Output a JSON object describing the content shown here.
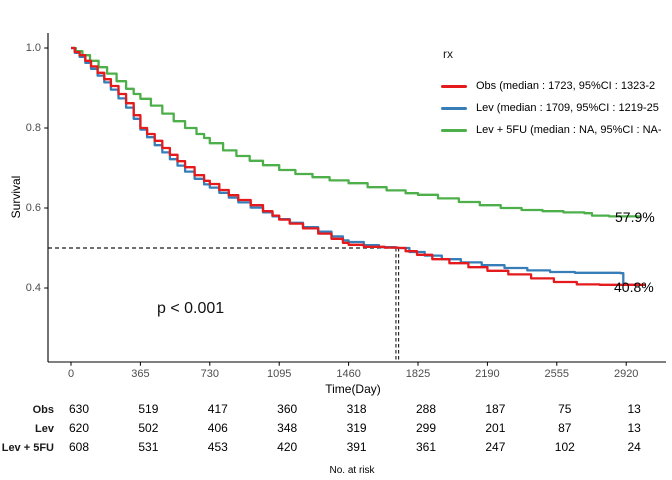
{
  "chart_data": {
    "type": "line",
    "subtype": "kaplan-meier-step",
    "title": "",
    "xlabel": "Time(Day)",
    "ylabel": "Survival",
    "x_ticks": [
      0,
      365,
      730,
      1095,
      1460,
      1825,
      2190,
      2555,
      2920
    ],
    "y_ticks": [
      1.0,
      0.8,
      0.6,
      0.4
    ],
    "y_tick_labels": [
      "1.0",
      "0.8",
      "0.6",
      "0.4"
    ],
    "xlim": [
      0,
      3050
    ],
    "ylim": [
      0.215,
      1.04
    ],
    "grid": false,
    "legend_position": "top-right-inside",
    "reference_lines": {
      "survival_level": 0.5,
      "median_days": [
        1709,
        1723
      ]
    },
    "series": [
      {
        "name": "Obs",
        "color": "#e41a1c",
        "median": 1723,
        "points": [
          [
            0,
            1
          ],
          [
            20,
            0.99
          ],
          [
            45,
            0.982
          ],
          [
            75,
            0.968
          ],
          [
            105,
            0.954
          ],
          [
            140,
            0.938
          ],
          [
            175,
            0.922
          ],
          [
            210,
            0.905
          ],
          [
            250,
            0.885
          ],
          [
            290,
            0.862
          ],
          [
            330,
            0.832
          ],
          [
            365,
            0.8
          ],
          [
            400,
            0.785
          ],
          [
            440,
            0.768
          ],
          [
            480,
            0.75
          ],
          [
            520,
            0.733
          ],
          [
            560,
            0.717
          ],
          [
            600,
            0.702
          ],
          [
            650,
            0.682
          ],
          [
            700,
            0.668
          ],
          [
            730,
            0.66
          ],
          [
            780,
            0.645
          ],
          [
            830,
            0.632
          ],
          [
            880,
            0.62
          ],
          [
            945,
            0.607
          ],
          [
            1010,
            0.592
          ],
          [
            1060,
            0.581
          ],
          [
            1095,
            0.571
          ],
          [
            1150,
            0.561
          ],
          [
            1220,
            0.549
          ],
          [
            1300,
            0.536
          ],
          [
            1370,
            0.523
          ],
          [
            1430,
            0.513
          ],
          [
            1460,
            0.508
          ],
          [
            1540,
            0.503
          ],
          [
            1650,
            0.501
          ],
          [
            1723,
            0.5
          ],
          [
            1760,
            0.492
          ],
          [
            1820,
            0.483
          ],
          [
            1900,
            0.472
          ],
          [
            1990,
            0.462
          ],
          [
            2090,
            0.452
          ],
          [
            2190,
            0.443
          ],
          [
            2300,
            0.434
          ],
          [
            2420,
            0.424
          ],
          [
            2540,
            0.415
          ],
          [
            2660,
            0.409
          ],
          [
            2780,
            0.408
          ],
          [
            3020,
            0.408
          ]
        ]
      },
      {
        "name": "Lev",
        "color": "#377eb8",
        "median": 1709,
        "points": [
          [
            0,
            1
          ],
          [
            20,
            0.988
          ],
          [
            45,
            0.978
          ],
          [
            75,
            0.963
          ],
          [
            105,
            0.948
          ],
          [
            140,
            0.931
          ],
          [
            175,
            0.914
          ],
          [
            210,
            0.896
          ],
          [
            250,
            0.874
          ],
          [
            290,
            0.851
          ],
          [
            330,
            0.823
          ],
          [
            365,
            0.796
          ],
          [
            400,
            0.777
          ],
          [
            440,
            0.757
          ],
          [
            480,
            0.739
          ],
          [
            520,
            0.722
          ],
          [
            560,
            0.706
          ],
          [
            600,
            0.691
          ],
          [
            650,
            0.673
          ],
          [
            700,
            0.659
          ],
          [
            730,
            0.651
          ],
          [
            780,
            0.638
          ],
          [
            830,
            0.626
          ],
          [
            880,
            0.614
          ],
          [
            945,
            0.601
          ],
          [
            1010,
            0.589
          ],
          [
            1060,
            0.579
          ],
          [
            1095,
            0.572
          ],
          [
            1150,
            0.563
          ],
          [
            1220,
            0.552
          ],
          [
            1300,
            0.541
          ],
          [
            1370,
            0.529
          ],
          [
            1430,
            0.519
          ],
          [
            1460,
            0.515
          ],
          [
            1540,
            0.507
          ],
          [
            1620,
            0.502
          ],
          [
            1709,
            0.5
          ],
          [
            1780,
            0.49
          ],
          [
            1860,
            0.481
          ],
          [
            1950,
            0.472
          ],
          [
            2050,
            0.464
          ],
          [
            2160,
            0.457
          ],
          [
            2280,
            0.45
          ],
          [
            2400,
            0.444
          ],
          [
            2520,
            0.44
          ],
          [
            2650,
            0.438
          ],
          [
            2890,
            0.437
          ],
          [
            2905,
            0.408
          ],
          [
            2990,
            0.408
          ]
        ]
      },
      {
        "name": "Lev + 5FU",
        "color": "#4daf4a",
        "median": null,
        "points": [
          [
            0,
            1
          ],
          [
            25,
            0.992
          ],
          [
            60,
            0.982
          ],
          [
            100,
            0.968
          ],
          [
            145,
            0.952
          ],
          [
            190,
            0.936
          ],
          [
            240,
            0.917
          ],
          [
            290,
            0.898
          ],
          [
            330,
            0.885
          ],
          [
            365,
            0.873
          ],
          [
            420,
            0.856
          ],
          [
            480,
            0.836
          ],
          [
            540,
            0.817
          ],
          [
            600,
            0.8
          ],
          [
            660,
            0.785
          ],
          [
            700,
            0.775
          ],
          [
            730,
            0.762
          ],
          [
            800,
            0.744
          ],
          [
            870,
            0.73
          ],
          [
            940,
            0.718
          ],
          [
            1010,
            0.707
          ],
          [
            1095,
            0.695
          ],
          [
            1180,
            0.685
          ],
          [
            1270,
            0.677
          ],
          [
            1360,
            0.669
          ],
          [
            1460,
            0.662
          ],
          [
            1560,
            0.652
          ],
          [
            1660,
            0.644
          ],
          [
            1760,
            0.637
          ],
          [
            1825,
            0.633
          ],
          [
            1930,
            0.624
          ],
          [
            2040,
            0.615
          ],
          [
            2150,
            0.607
          ],
          [
            2260,
            0.6
          ],
          [
            2370,
            0.595
          ],
          [
            2480,
            0.592
          ],
          [
            2590,
            0.589
          ],
          [
            2700,
            0.587
          ],
          [
            2740,
            0.581
          ],
          [
            2830,
            0.579
          ],
          [
            3000,
            0.579
          ]
        ]
      }
    ]
  },
  "legend": {
    "title": "rx",
    "items": [
      {
        "label": "Obs (median : 1723, 95%CI : 1323-2",
        "color": "#e41a1c"
      },
      {
        "label": "Lev (median : 1709, 95%CI : 1219-25",
        "color": "#377eb8"
      },
      {
        "label": "Lev + 5FU (median : NA, 95%CI : NA-",
        "color": "#4daf4a"
      }
    ]
  },
  "annotations": {
    "p_value": "p < 0.001",
    "green_end_label": "57.9%",
    "red_end_label": "40.8%"
  },
  "risk_table": {
    "caption": "No. at risk",
    "rows": [
      {
        "label": "Obs",
        "counts": [
          630,
          519,
          417,
          360,
          318,
          288,
          187,
          75,
          13
        ]
      },
      {
        "label": "Lev",
        "counts": [
          620,
          502,
          406,
          348,
          319,
          299,
          201,
          87,
          13
        ]
      },
      {
        "label": "Lev + 5FU",
        "counts": [
          608,
          531,
          453,
          420,
          391,
          361,
          247,
          102,
          24
        ]
      }
    ]
  }
}
